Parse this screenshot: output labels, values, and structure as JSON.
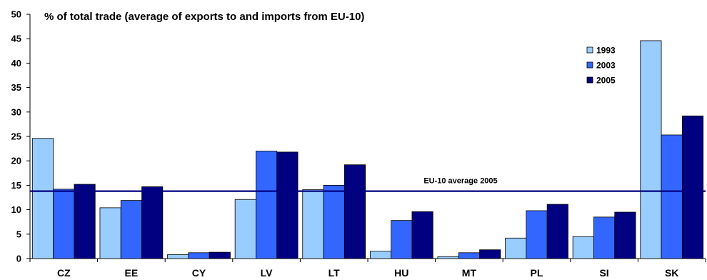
{
  "chart_data": {
    "type": "bar",
    "title": "% of total trade (average of exports to and imports from EU-10)",
    "xlabel": "",
    "ylabel": "",
    "ylim": [
      0,
      50
    ],
    "yticks": [
      0,
      5,
      10,
      15,
      20,
      25,
      30,
      35,
      40,
      45,
      50
    ],
    "categories": [
      "CZ",
      "EE",
      "CY",
      "LV",
      "LT",
      "HU",
      "MT",
      "PL",
      "SI",
      "SK"
    ],
    "series": [
      {
        "name": "1993",
        "color": "#99ccff",
        "values": [
          24.6,
          10.4,
          0.8,
          12.1,
          14.1,
          1.5,
          0.4,
          4.2,
          4.5,
          44.6
        ]
      },
      {
        "name": "2003",
        "color": "#3366ff",
        "values": [
          14.2,
          11.9,
          1.2,
          22.0,
          15.0,
          7.8,
          1.2,
          9.8,
          8.5,
          25.3
        ]
      },
      {
        "name": "2005",
        "color": "#000080",
        "values": [
          15.2,
          14.7,
          1.3,
          21.8,
          19.2,
          9.6,
          1.8,
          11.1,
          9.5,
          29.2
        ]
      }
    ],
    "reference_line": {
      "label": "EU-10 average 2005",
      "value": 13.8,
      "color": "#000080"
    },
    "legend_position": "top-right",
    "grid": false
  }
}
